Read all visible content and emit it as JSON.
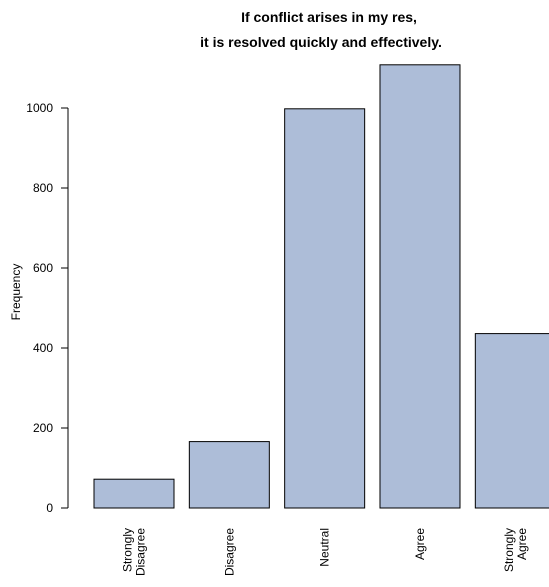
{
  "chart_data": {
    "type": "bar",
    "title_lines": [
      "If conflict arises in my res,",
      "it is resolved quickly and effectively."
    ],
    "xlabel": "",
    "ylabel": "Frequency",
    "categories": [
      [
        "Strongly",
        "Disagree"
      ],
      [
        "Disagree"
      ],
      [
        "Neutral"
      ],
      [
        "Agree"
      ],
      [
        "Strongly",
        "Agree"
      ]
    ],
    "values": [
      72,
      166,
      998,
      1108,
      436
    ],
    "ylim": [
      0,
      1108
    ],
    "yticks": [
      0,
      200,
      400,
      600,
      800,
      1000
    ],
    "grid": false,
    "bar_fill": "#adbdd8",
    "bar_stroke": "#000000"
  }
}
